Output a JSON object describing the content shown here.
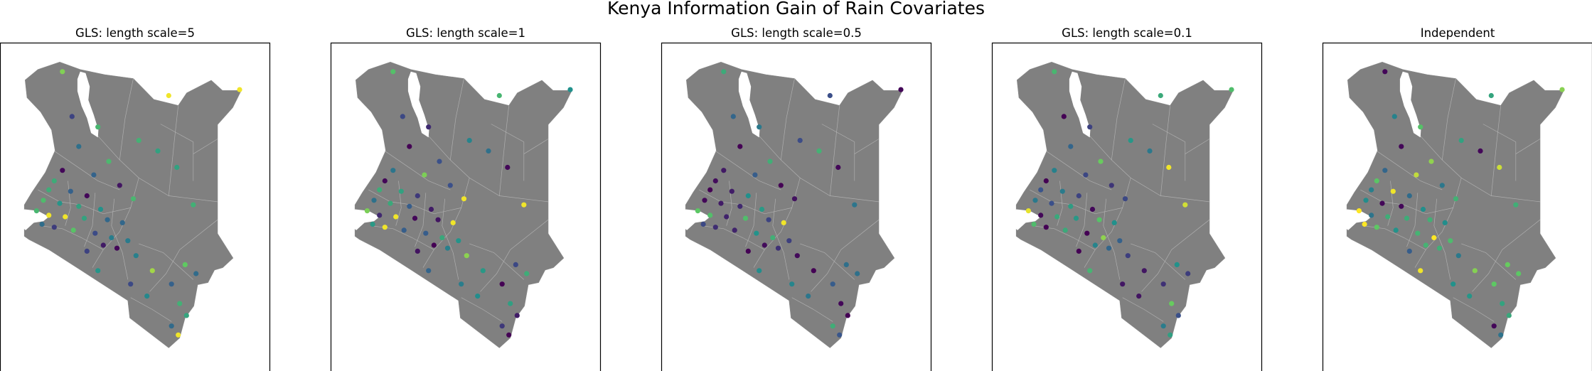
{
  "figure": {
    "suptitle": "Kenya Information Gain of Rain Covariates"
  },
  "colormap": {
    "name": "viridis",
    "stops": [
      "#440154",
      "#3b528b",
      "#21918c",
      "#5ec962",
      "#fde725"
    ]
  },
  "colors": {
    "land": "#808080",
    "border": "#bdbdbd",
    "frame": "#000000",
    "background": "#ffffff"
  },
  "panels": [
    {
      "title": "GLS: length scale=5",
      "seed": 11,
      "shift": 0.05
    },
    {
      "title": "GLS: length scale=1",
      "seed": 23,
      "shift": -0.05
    },
    {
      "title": "GLS: length scale=0.5",
      "seed": 37,
      "shift": -0.15
    },
    {
      "title": "GLS: length scale=0.1",
      "seed": 41,
      "shift": -0.1
    },
    {
      "title": "Independent",
      "seed": 53,
      "shift": 0.22
    }
  ],
  "stations": [
    [
      35.3,
      4.55,
      0.95
    ],
    [
      41.8,
      3.95,
      0.5
    ],
    [
      39.2,
      3.75,
      0.55
    ],
    [
      35.65,
      3.05,
      0.45
    ],
    [
      36.6,
      2.7,
      0.4
    ],
    [
      38.1,
      2.25,
      0.7
    ],
    [
      35.9,
      2.05,
      0.3
    ],
    [
      38.8,
      1.9,
      0.6
    ],
    [
      37.0,
      1.55,
      0.5
    ],
    [
      39.5,
      1.35,
      0.8
    ],
    [
      35.3,
      1.25,
      0.45
    ],
    [
      36.45,
      1.1,
      0.55
    ],
    [
      37.4,
      0.75,
      0.35
    ],
    [
      35.0,
      0.9,
      0.25
    ],
    [
      34.8,
      0.6,
      0.4
    ],
    [
      35.6,
      0.55,
      0.6
    ],
    [
      36.2,
      0.4,
      0.5
    ],
    [
      37.9,
      0.3,
      0.35
    ],
    [
      40.1,
      0.1,
      0.75
    ],
    [
      34.6,
      0.25,
      0.45
    ],
    [
      35.2,
      0.15,
      0.3
    ],
    [
      35.9,
      0.05,
      0.55
    ],
    [
      36.7,
      -0.05,
      0.4
    ],
    [
      34.35,
      -0.1,
      0.8
    ],
    [
      34.8,
      -0.25,
      0.5
    ],
    [
      35.4,
      -0.3,
      0.35
    ],
    [
      36.1,
      -0.35,
      0.6
    ],
    [
      36.95,
      -0.4,
      0.45
    ],
    [
      37.5,
      -0.5,
      0.55
    ],
    [
      34.55,
      -0.55,
      0.65
    ],
    [
      35.0,
      -0.65,
      0.3
    ],
    [
      35.7,
      -0.75,
      0.5
    ],
    [
      36.5,
      -0.85,
      0.4
    ],
    [
      37.1,
      -1.0,
      0.6
    ],
    [
      37.7,
      -1.1,
      0.45
    ],
    [
      36.8,
      -1.25,
      0.35
    ],
    [
      37.3,
      -1.35,
      0.55
    ],
    [
      36.2,
      -1.45,
      0.25
    ],
    [
      38.0,
      -1.6,
      0.5
    ],
    [
      38.6,
      -2.1,
      0.45
    ],
    [
      39.8,
      -1.9,
      0.55
    ],
    [
      40.2,
      -2.2,
      0.65
    ],
    [
      39.3,
      -2.55,
      0.35
    ],
    [
      38.4,
      -2.95,
      0.5
    ],
    [
      39.6,
      -3.2,
      0.6
    ],
    [
      39.85,
      -3.6,
      0.45
    ],
    [
      39.3,
      -3.95,
      0.5
    ],
    [
      39.55,
      -4.25,
      0.4
    ],
    [
      37.8,
      -2.55,
      0.3
    ],
    [
      36.6,
      -2.1,
      0.45
    ]
  ]
}
